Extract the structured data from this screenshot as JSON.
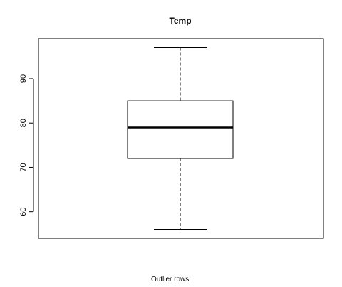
{
  "chart_data": {
    "type": "box",
    "title": "Temp",
    "ylim": [
      54,
      99
    ],
    "yticks": [
      60,
      70,
      80,
      90
    ],
    "stats": {
      "min": 56,
      "q1": 72,
      "median": 79,
      "q3": 85,
      "max": 97
    },
    "outliers": []
  },
  "footer": {
    "outlier_label": "Outlier rows:"
  }
}
